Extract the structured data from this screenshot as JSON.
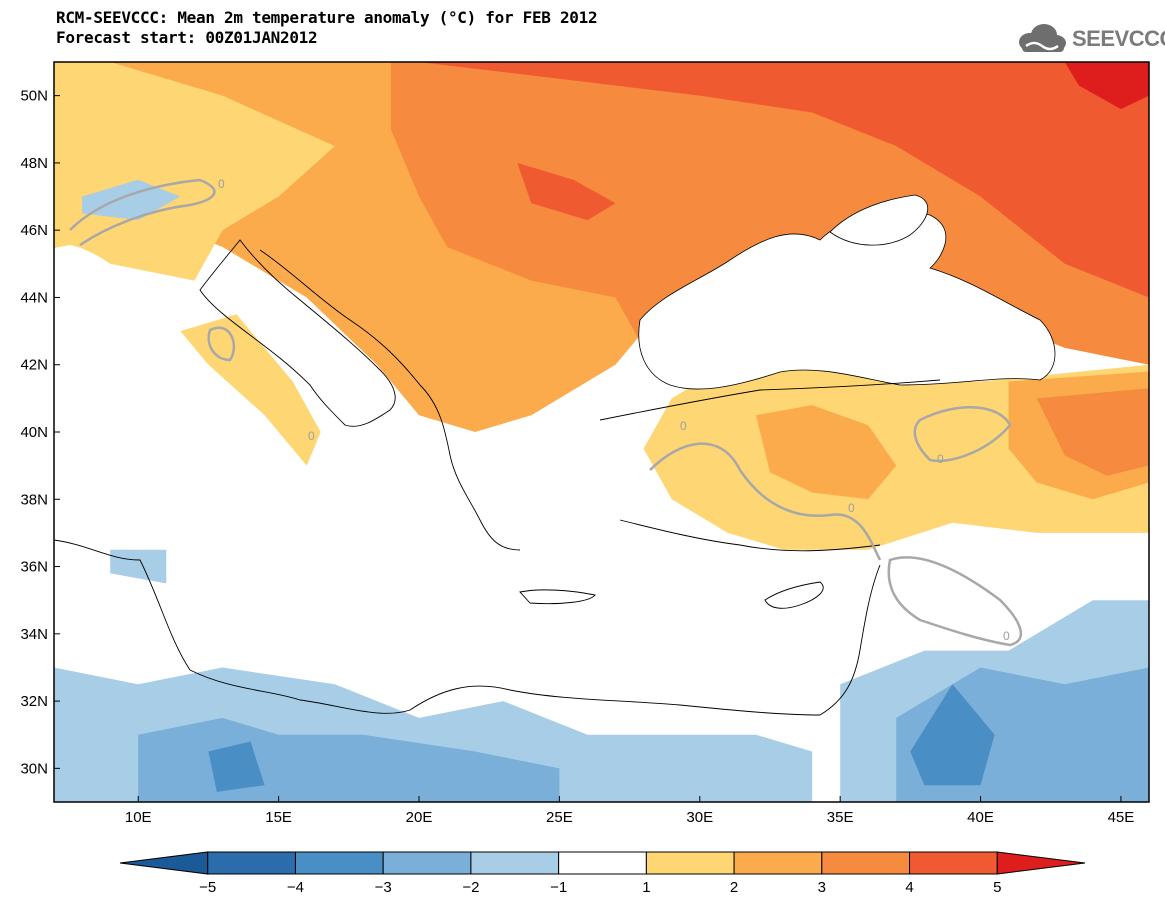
{
  "header": {
    "title": "RCM-SEEVCCC: Mean 2m temperature anomaly (°C) for FEB 2012",
    "subtitle": "Forecast start: 00Z01JAN2012",
    "logo_text": "SEEVCCC"
  },
  "chart_data": {
    "type": "heatmap",
    "variable": "Mean 2m temperature anomaly",
    "units": "°C",
    "lon_range": [
      7,
      46
    ],
    "lat_range": [
      29,
      51
    ],
    "lon_ticks": [
      {
        "value": 10,
        "label": "10E"
      },
      {
        "value": 15,
        "label": "15E"
      },
      {
        "value": 20,
        "label": "20E"
      },
      {
        "value": 25,
        "label": "25E"
      },
      {
        "value": 30,
        "label": "30E"
      },
      {
        "value": 35,
        "label": "35E"
      },
      {
        "value": 40,
        "label": "40E"
      },
      {
        "value": 45,
        "label": "45E"
      }
    ],
    "lat_ticks": [
      {
        "value": 30,
        "label": "30N"
      },
      {
        "value": 32,
        "label": "32N"
      },
      {
        "value": 34,
        "label": "34N"
      },
      {
        "value": 36,
        "label": "36N"
      },
      {
        "value": 38,
        "label": "38N"
      },
      {
        "value": 40,
        "label": "40N"
      },
      {
        "value": 42,
        "label": "42N"
      },
      {
        "value": 44,
        "label": "44N"
      },
      {
        "value": 46,
        "label": "46N"
      },
      {
        "value": 48,
        "label": "48N"
      },
      {
        "value": 50,
        "label": "50N"
      }
    ],
    "colorbar": {
      "levels": [
        -5,
        -4,
        -3,
        -2,
        -1,
        1,
        2,
        3,
        4,
        5
      ],
      "labels": [
        "−5",
        "−4",
        "−3",
        "−2",
        "−1",
        "1",
        "2",
        "3",
        "4",
        "5"
      ],
      "colors": [
        "#1a5a96",
        "#2b6dac",
        "#4a8ec6",
        "#79afd8",
        "#a8cde6",
        "#ffffff",
        "#fed674",
        "#fcab4c",
        "#f68a3e",
        "#f05a30",
        "#de1d1d"
      ]
    },
    "contour_label": "0",
    "regions": [
      {
        "anomaly_class": "2-3",
        "color": "#fcab4c",
        "points": [
          [
            7,
            51
          ],
          [
            25,
            51
          ],
          [
            30,
            50
          ],
          [
            34,
            48.5
          ],
          [
            34,
            47
          ],
          [
            30,
            46
          ],
          [
            29,
            44
          ],
          [
            28,
            43
          ],
          [
            27,
            42
          ],
          [
            24,
            40.5
          ],
          [
            22,
            40
          ],
          [
            20,
            40.5
          ],
          [
            18.5,
            42
          ],
          [
            16,
            44
          ],
          [
            13,
            45.5
          ],
          [
            10,
            46.5
          ],
          [
            7,
            46.5
          ]
        ]
      },
      {
        "anomaly_class": "1-2",
        "color": "#fed674",
        "points": [
          [
            7,
            51
          ],
          [
            9,
            51
          ],
          [
            13,
            50
          ],
          [
            17,
            48.5
          ],
          [
            15,
            47
          ],
          [
            13,
            46
          ],
          [
            12,
            44.5
          ],
          [
            9,
            45
          ],
          [
            7,
            45
          ]
        ]
      },
      {
        "anomaly_class": "3-4",
        "color": "#f68a3e",
        "points": [
          [
            19,
            51
          ],
          [
            46,
            51
          ],
          [
            46,
            42
          ],
          [
            43,
            42.5
          ],
          [
            40,
            43.5
          ],
          [
            37,
            44.5
          ],
          [
            35,
            45
          ],
          [
            32,
            44
          ],
          [
            30,
            43
          ],
          [
            28,
            42.5
          ],
          [
            27,
            44
          ],
          [
            24,
            44.5
          ],
          [
            21,
            45.5
          ],
          [
            20,
            47
          ],
          [
            19,
            49
          ]
        ]
      },
      {
        "anomaly_class": "4-5",
        "color": "#f05a30",
        "points": [
          [
            20,
            51
          ],
          [
            46,
            51
          ],
          [
            46,
            44
          ],
          [
            43,
            45
          ],
          [
            40,
            47
          ],
          [
            37,
            48.5
          ],
          [
            34,
            49.5
          ],
          [
            30,
            50
          ],
          [
            25,
            50.5
          ]
        ]
      },
      {
        "anomaly_class": "4-5",
        "color": "#f05a30",
        "points": [
          [
            23.5,
            48
          ],
          [
            25.5,
            47.5
          ],
          [
            27,
            46.8
          ],
          [
            26,
            46.3
          ],
          [
            24,
            46.8
          ]
        ]
      },
      {
        "anomaly_class": ">5",
        "color": "#de1d1d",
        "points": [
          [
            43,
            51
          ],
          [
            46,
            51
          ],
          [
            46,
            50
          ],
          [
            45,
            49.6
          ],
          [
            43.5,
            50.3
          ]
        ]
      },
      {
        "anomaly_class": "1-2",
        "color": "#fed674",
        "points": [
          [
            29,
            41
          ],
          [
            30,
            41.5
          ],
          [
            33,
            42
          ],
          [
            36,
            41.8
          ],
          [
            40,
            41.5
          ],
          [
            46,
            42
          ],
          [
            46,
            37
          ],
          [
            42,
            37
          ],
          [
            39,
            37.3
          ],
          [
            36,
            36.5
          ],
          [
            33,
            36.5
          ],
          [
            31,
            37
          ],
          [
            29,
            38
          ],
          [
            28,
            39.5
          ]
        ]
      },
      {
        "anomaly_class": "2-3",
        "color": "#fcab4c",
        "points": [
          [
            32,
            40.5
          ],
          [
            34,
            40.8
          ],
          [
            36,
            40.2
          ],
          [
            37,
            39
          ],
          [
            36,
            38
          ],
          [
            34,
            38.2
          ],
          [
            32.5,
            38.8
          ]
        ]
      },
      {
        "anomaly_class": "2-3",
        "color": "#fcab4c",
        "points": [
          [
            41,
            41.5
          ],
          [
            46,
            41.8
          ],
          [
            46,
            38.5
          ],
          [
            44,
            38
          ],
          [
            42,
            38.5
          ],
          [
            41,
            39.5
          ]
        ]
      },
      {
        "anomaly_class": "3-4",
        "color": "#f68a3e",
        "points": [
          [
            42,
            41
          ],
          [
            46,
            41.3
          ],
          [
            46,
            39
          ],
          [
            44.5,
            38.7
          ],
          [
            43,
            39.3
          ]
        ]
      },
      {
        "anomaly_class": "1-2",
        "color": "#fed674",
        "points": [
          [
            11.5,
            43
          ],
          [
            13.5,
            43.5
          ],
          [
            15.5,
            41.5
          ],
          [
            16.5,
            40
          ],
          [
            16,
            39
          ],
          [
            14.5,
            40.5
          ],
          [
            12.5,
            42
          ]
        ]
      },
      {
        "anomaly_class": "-2--1",
        "color": "#a8cde6",
        "points": [
          [
            7,
            33
          ],
          [
            10,
            32.5
          ],
          [
            13,
            33
          ],
          [
            17,
            32.5
          ],
          [
            20,
            31.5
          ],
          [
            23,
            32
          ],
          [
            26,
            31
          ],
          [
            29,
            31
          ],
          [
            32,
            31
          ],
          [
            34,
            30.5
          ],
          [
            34,
            29
          ],
          [
            7,
            29
          ]
        ]
      },
      {
        "anomaly_class": "-2--1",
        "color": "#a8cde6",
        "points": [
          [
            35,
            32.5
          ],
          [
            38,
            33.5
          ],
          [
            41,
            33.5
          ],
          [
            44,
            35
          ],
          [
            46,
            35
          ],
          [
            46,
            29
          ],
          [
            35,
            29
          ]
        ]
      },
      {
        "anomaly_class": "-3--2",
        "color": "#79afd8",
        "points": [
          [
            10,
            31
          ],
          [
            13,
            31.5
          ],
          [
            15,
            31
          ],
          [
            18,
            31
          ],
          [
            22,
            30.5
          ],
          [
            25,
            30
          ],
          [
            25,
            29
          ],
          [
            10,
            29
          ]
        ]
      },
      {
        "anomaly_class": "-3--2",
        "color": "#79afd8",
        "points": [
          [
            37,
            31.5
          ],
          [
            40,
            33
          ],
          [
            43,
            32.5
          ],
          [
            46,
            33
          ],
          [
            46,
            29
          ],
          [
            37,
            29
          ]
        ]
      },
      {
        "anomaly_class": "-4--3",
        "color": "#4a8ec6",
        "points": [
          [
            12.5,
            30.5
          ],
          [
            14,
            30.8
          ],
          [
            14.5,
            29.5
          ],
          [
            12.8,
            29.3
          ]
        ]
      },
      {
        "anomaly_class": "-4--3",
        "color": "#4a8ec6",
        "points": [
          [
            37.5,
            30.5
          ],
          [
            39,
            32.5
          ],
          [
            40.5,
            31
          ],
          [
            40,
            29.5
          ],
          [
            38,
            29.5
          ]
        ]
      },
      {
        "anomaly_class": "-2--1",
        "color": "#a8cde6",
        "points": [
          [
            9,
            36.5
          ],
          [
            11,
            36.5
          ],
          [
            11,
            35.5
          ],
          [
            9,
            35.8
          ]
        ]
      },
      {
        "anomaly_class": "-2--1",
        "color": "#a8cde6",
        "points": [
          [
            8,
            47
          ],
          [
            10,
            47.5
          ],
          [
            11.5,
            47
          ],
          [
            10,
            46.3
          ],
          [
            8,
            46.5
          ]
        ]
      }
    ]
  }
}
